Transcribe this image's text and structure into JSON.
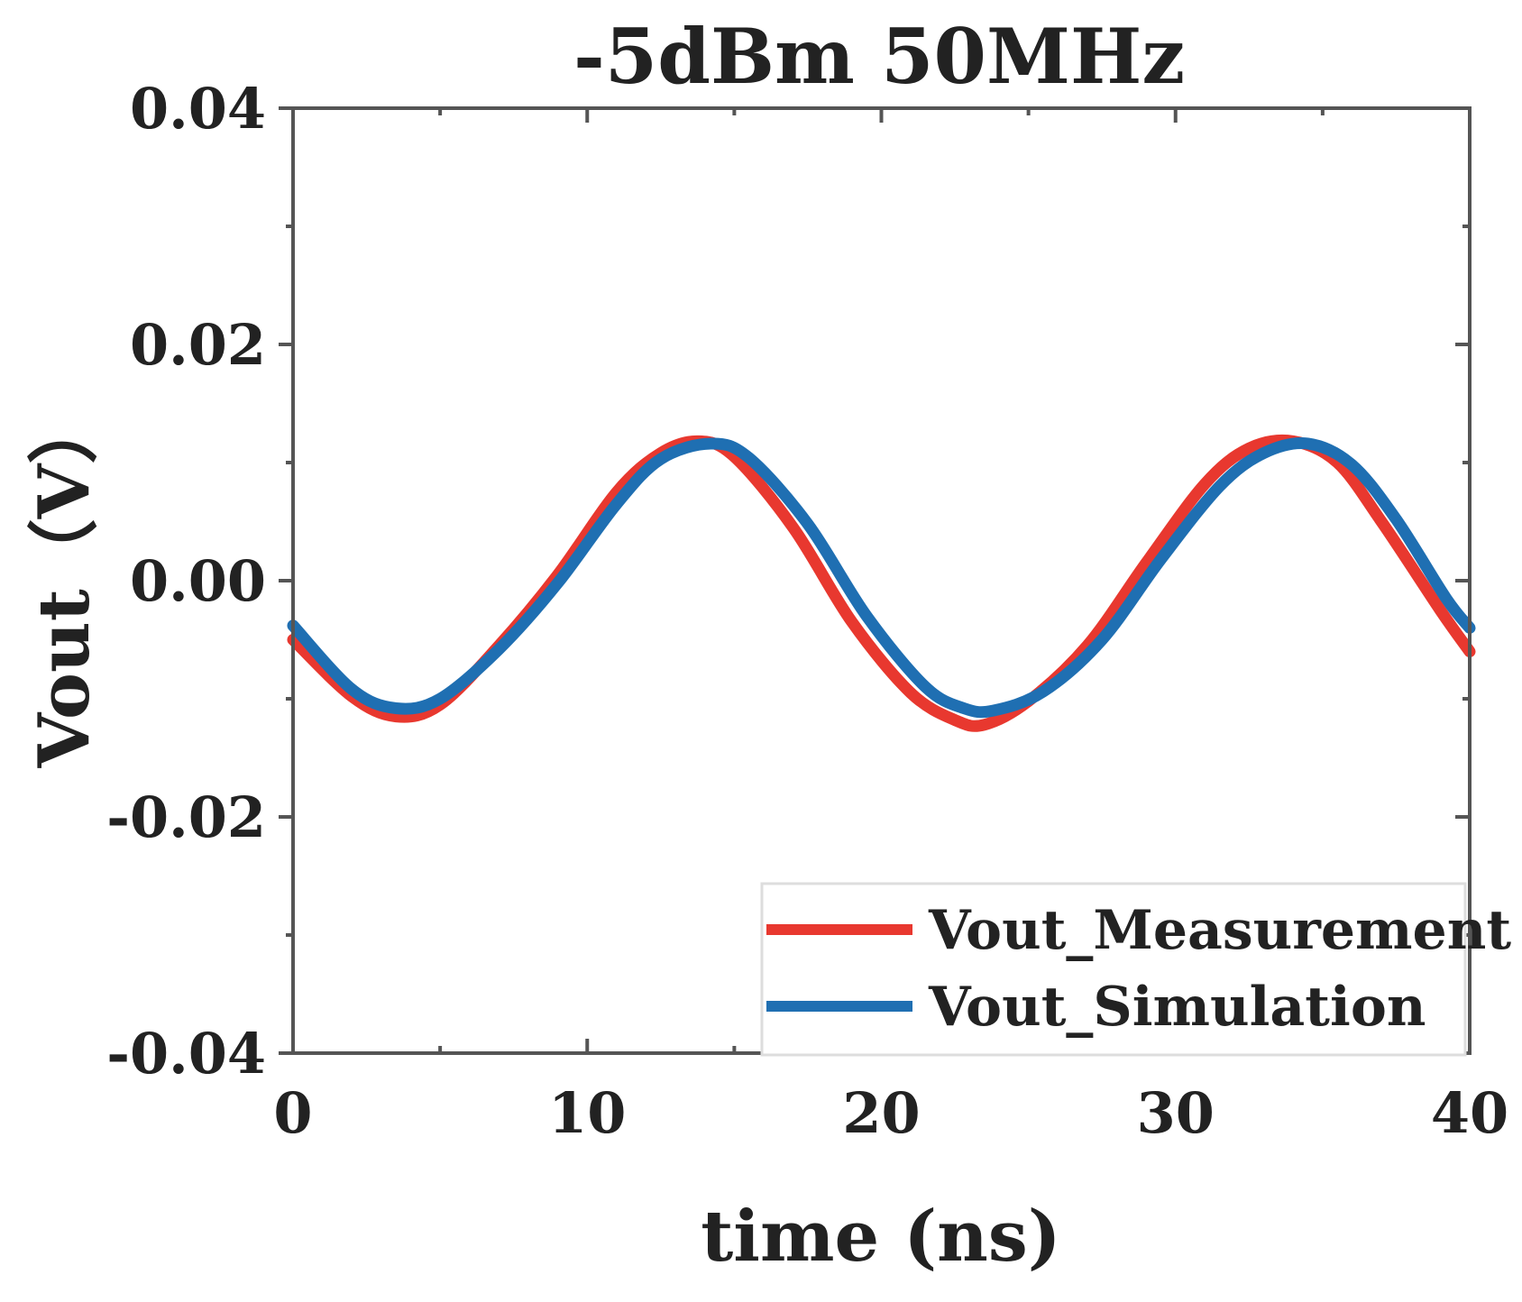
{
  "chart_data": {
    "type": "line",
    "title": "-5dBm 50MHz",
    "xlabel": "time (ns)",
    "ylabel": "Vout（V）",
    "xlim": [
      0,
      40
    ],
    "ylim": [
      -0.04,
      0.04
    ],
    "x_ticks": [
      0,
      10,
      20,
      30,
      40
    ],
    "x_tick_labels": [
      "0",
      "10",
      "20",
      "30",
      "40"
    ],
    "y_ticks": [
      0.04,
      0.02,
      0.0,
      -0.02,
      -0.04
    ],
    "y_tick_labels": [
      "0.04",
      "0.02",
      "0.00",
      "-0.02",
      "-0.04"
    ],
    "grid": false,
    "legend_position": "bottom-right",
    "series": [
      {
        "name": "Vout_Measurement",
        "color": "#e8382f",
        "x": [
          0,
          2,
          3.5,
          5,
          7,
          9,
          11,
          12.5,
          13.8,
          15,
          17,
          19,
          21,
          22.5,
          23.5,
          25,
          27,
          29,
          31,
          32.5,
          34,
          35.5,
          37,
          39,
          40
        ],
        "y": [
          -0.005,
          -0.0098,
          -0.0115,
          -0.0105,
          -0.0055,
          0.0005,
          0.0075,
          0.0108,
          0.0118,
          0.0105,
          0.0045,
          -0.0035,
          -0.0095,
          -0.0118,
          -0.0122,
          -0.0102,
          -0.0055,
          0.0015,
          0.0082,
          0.0112,
          0.0118,
          0.01,
          0.005,
          -0.0025,
          -0.006
        ]
      },
      {
        "name": "Vout_Simulation",
        "color": "#1f6fb2",
        "x": [
          0,
          2,
          3.5,
          5,
          7,
          9,
          11,
          12.5,
          14.2,
          15.5,
          17.5,
          19.5,
          21.5,
          22.8,
          23.8,
          25.5,
          27.5,
          29.5,
          31.5,
          33,
          34.5,
          36,
          37.5,
          39.2,
          40
        ],
        "y": [
          -0.0038,
          -0.0092,
          -0.0108,
          -0.01,
          -0.0058,
          -0.0002,
          0.0065,
          0.0103,
          0.0116,
          0.0104,
          0.0048,
          -0.003,
          -0.009,
          -0.0108,
          -0.011,
          -0.0094,
          -0.005,
          0.0018,
          0.008,
          0.0108,
          0.0116,
          0.0098,
          0.0052,
          -0.0015,
          -0.004
        ]
      }
    ]
  }
}
